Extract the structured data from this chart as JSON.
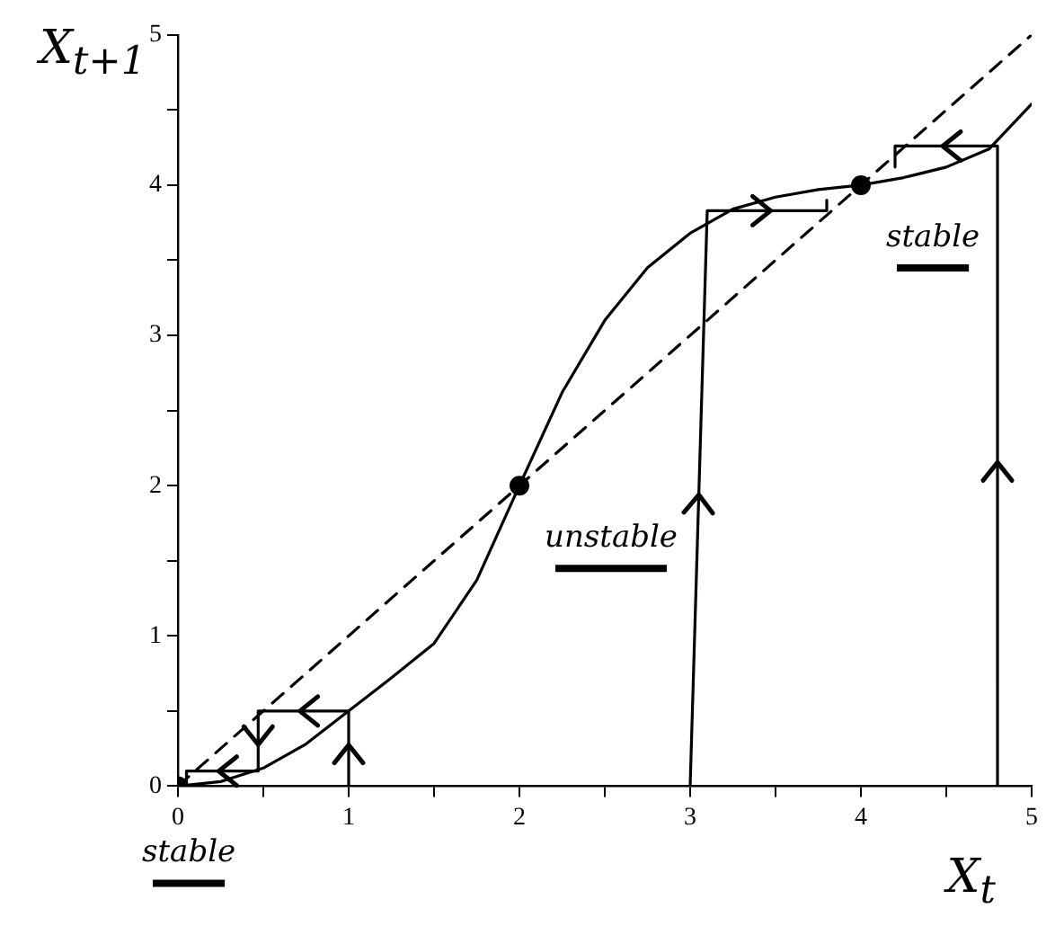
{
  "chart_data": {
    "type": "line",
    "xlabel": "X$_{t}$",
    "ylabel": "X$_{t+1}$",
    "xlim": [
      0,
      5
    ],
    "ylim": [
      0,
      5
    ],
    "xticks": [
      0,
      {
        "value": 0.5,
        "label": null
      },
      1,
      {
        "value": 1.5,
        "label": null
      },
      2,
      {
        "value": 2.5,
        "label": null
      },
      3,
      {
        "value": 3.5,
        "label": null
      },
      4,
      {
        "value": 4.5,
        "label": null
      },
      5
    ],
    "yticks": [
      0,
      {
        "value": 0.5,
        "label": null
      },
      1,
      {
        "value": 1.5,
        "label": null
      },
      2,
      {
        "value": 2.5,
        "label": null
      },
      3,
      {
        "value": 3.5,
        "label": null
      },
      4,
      {
        "value": 4.5,
        "label": null
      },
      5
    ],
    "grid": false,
    "legend": false,
    "series": [
      {
        "color": "#000000",
        "line_style": "solid",
        "marker": "none",
        "x": [
          0,
          0.25,
          0.5,
          0.75,
          1,
          1.25,
          1.5,
          1.75,
          2,
          2.25,
          2.5,
          2.75,
          3,
          3.25,
          3.5,
          3.75,
          4,
          4.25,
          4.5,
          4.75,
          5
        ],
        "values": [
          0,
          0.03,
          0.12,
          0.28,
          0.5,
          0.72,
          0.95,
          1.37,
          2.0,
          2.62,
          3.1,
          3.45,
          3.68,
          3.84,
          3.92,
          3.97,
          4.0,
          4.05,
          4.12,
          4.24,
          4.54
        ]
      },
      {
        "color": "#000000",
        "line_style": "dashed",
        "marker": "none",
        "x": [
          0,
          5
        ],
        "values": [
          0,
          5
        ]
      },
      {
        "color": "#000000",
        "line_style": "solid",
        "marker": "none",
        "x": [
          1,
          1,
          0.47,
          0.47,
          0.05,
          0.05
        ],
        "values": [
          0,
          0.5,
          0.5,
          0.1,
          0.1,
          0
        ]
      },
      {
        "color": "#000000",
        "line_style": "solid",
        "marker": "none",
        "x": [
          3,
          3.1,
          3.8,
          3.8
        ],
        "values": [
          0,
          3.83,
          3.83,
          3.9
        ]
      },
      {
        "color": "#000000",
        "line_style": "solid",
        "marker": "none",
        "x": [
          4.8,
          4.8,
          4.2,
          4.2
        ],
        "values": [
          0,
          4.26,
          4.26,
          4.12
        ]
      },
      {
        "type": "scatter",
        "color": "#000000",
        "marker": "circle",
        "x": [
          0,
          2,
          4
        ],
        "values": [
          0,
          2,
          4
        ]
      }
    ],
    "annotations": [
      {
        "text": "stable",
        "x": 0,
        "y": 0
      },
      {
        "text": "unstable",
        "x": 2,
        "y": 2
      },
      {
        "text": "stable",
        "x": 4,
        "y": 4
      }
    ]
  }
}
